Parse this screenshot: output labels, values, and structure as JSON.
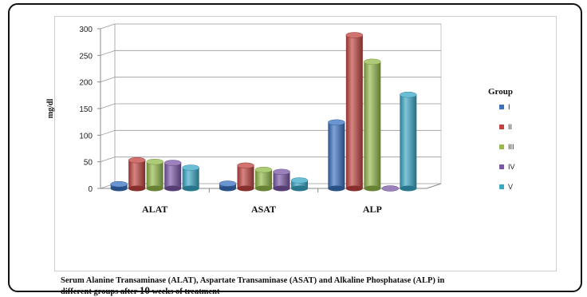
{
  "chart_data": {
    "type": "bar",
    "ylabel": "mg/dl",
    "ylim": [
      0,
      300
    ],
    "yticks": [
      0,
      50,
      100,
      150,
      200,
      250,
      300
    ],
    "categories": [
      "ALAT",
      "ASAT",
      "ALP"
    ],
    "legend_title": "Group",
    "legend_position": "right",
    "grid": true,
    "series": [
      {
        "name": "I",
        "color": "#3a72c0",
        "values": [
          8,
          9,
          124
        ]
      },
      {
        "name": "II",
        "color": "#c0433f",
        "values": [
          53,
          43,
          288
        ]
      },
      {
        "name": "III",
        "color": "#93b94a",
        "values": [
          50,
          35,
          238
        ]
      },
      {
        "name": "IV",
        "color": "#7b58a6",
        "values": [
          48,
          31,
          0
        ]
      },
      {
        "name": "V",
        "color": "#3aa8c8",
        "values": [
          39,
          15,
          176
        ]
      }
    ]
  },
  "caption": {
    "line1": "Serum Alanine Transaminase (ALAT), Aspartate Transaminase (ASAT) and Alkaline Phosphatase (ALP) in",
    "line2_prefix": "different groups after ",
    "line2_number": "10",
    "line2_suffix": " weeks of treatment"
  }
}
